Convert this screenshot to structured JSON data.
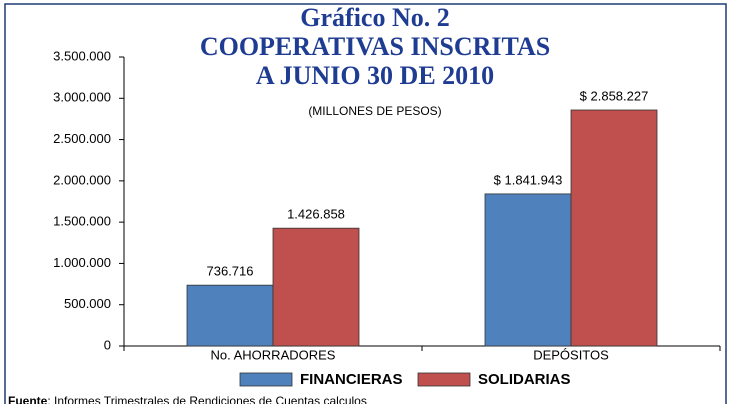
{
  "chart_data": {
    "type": "bar",
    "title": [
      "Gráfico No. 2",
      "COOPERATIVAS INSCRITAS",
      "A JUNIO 30 DE 2010"
    ],
    "subtitle": "(MILLONES DE PESOS)",
    "categories": [
      "No. AHORRADORES",
      "DEPÓSITOS"
    ],
    "series": [
      {
        "name": "FINANCIERAS",
        "color": "#4f81bd",
        "values": [
          736716,
          1841943
        ],
        "value_labels": [
          "736.716",
          "$ 1.841.943"
        ]
      },
      {
        "name": "SOLIDARIAS",
        "color": "#c0504d",
        "values": [
          1426858,
          2858227
        ],
        "value_labels": [
          "1.426.858",
          "$ 2.858.227"
        ]
      }
    ],
    "ylim": [
      0,
      3500000
    ],
    "yticks": [
      0,
      {
        "value": 500000,
        "label": "500.000"
      },
      {
        "value": 1000000,
        "label": "1.000.000"
      },
      {
        "value": 1500000,
        "label": "1.500.000"
      },
      {
        "value": 2000000,
        "label": "2.000.000"
      },
      {
        "value": 2500000,
        "label": "2.500.000"
      },
      {
        "value": 3000000,
        "label": "3.000.000"
      },
      {
        "value": 3500000,
        "label": "3.500.000"
      }
    ],
    "legend": "bottom",
    "source": {
      "label": "Fuente",
      "text": ": Informes Trimestrales de Rendiciones de Cuentas calculos"
    }
  }
}
